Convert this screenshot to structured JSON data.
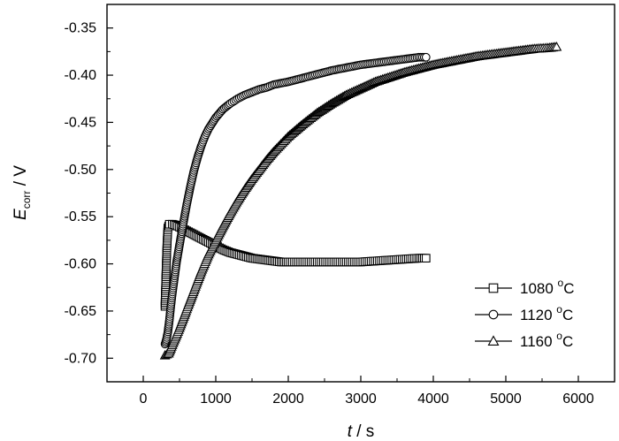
{
  "chart_data": {
    "type": "scatter",
    "xlabel": "t / s",
    "xlabel_italic": "t",
    "xlabel_unit": " / s",
    "ylabel_symbol": "E",
    "ylabel_subscript": "corr",
    "ylabel_unit": " / V",
    "xlim": [
      -500,
      6500
    ],
    "ylim": [
      -0.725,
      -0.325
    ],
    "x_ticks": [
      0,
      1000,
      2000,
      3000,
      4000,
      5000,
      6000
    ],
    "x_tick_labels": [
      "0",
      "1000",
      "2000",
      "3000",
      "4000",
      "5000",
      "6000"
    ],
    "y_ticks": [
      -0.35,
      -0.4,
      -0.45,
      -0.5,
      -0.55,
      -0.6,
      -0.65,
      -0.7
    ],
    "y_tick_labels": [
      "-0.35",
      "-0.40",
      "-0.45",
      "-0.50",
      "-0.55",
      "-0.60",
      "-0.65",
      "-0.70"
    ],
    "grid": false,
    "legend_position": "bottom-right",
    "series": [
      {
        "name": "1080 °C",
        "label_main": "1080 ",
        "label_sup": "o",
        "label_tail": "C",
        "marker": "square",
        "points": [
          [
            300,
            -0.645
          ],
          [
            310,
            -0.62
          ],
          [
            320,
            -0.595
          ],
          [
            330,
            -0.575
          ],
          [
            340,
            -0.562
          ],
          [
            360,
            -0.558
          ],
          [
            400,
            -0.558
          ],
          [
            450,
            -0.559
          ],
          [
            500,
            -0.561
          ],
          [
            600,
            -0.565
          ],
          [
            700,
            -0.569
          ],
          [
            800,
            -0.573
          ],
          [
            900,
            -0.577
          ],
          [
            1000,
            -0.581
          ],
          [
            1100,
            -0.585
          ],
          [
            1200,
            -0.588
          ],
          [
            1300,
            -0.59
          ],
          [
            1400,
            -0.592
          ],
          [
            1500,
            -0.594
          ],
          [
            1600,
            -0.595
          ],
          [
            1700,
            -0.596
          ],
          [
            1800,
            -0.597
          ],
          [
            1900,
            -0.598
          ],
          [
            2000,
            -0.598
          ],
          [
            2200,
            -0.598
          ],
          [
            2400,
            -0.598
          ],
          [
            2600,
            -0.598
          ],
          [
            2800,
            -0.598
          ],
          [
            3000,
            -0.598
          ],
          [
            3200,
            -0.597
          ],
          [
            3400,
            -0.596
          ],
          [
            3600,
            -0.595
          ],
          [
            3800,
            -0.594
          ],
          [
            3900,
            -0.594
          ]
        ]
      },
      {
        "name": "1120 °C",
        "label_main": "1120 ",
        "label_sup": "o",
        "label_tail": "C",
        "marker": "circle",
        "points": [
          [
            300,
            -0.685
          ],
          [
            320,
            -0.68
          ],
          [
            340,
            -0.672
          ],
          [
            360,
            -0.66
          ],
          [
            380,
            -0.645
          ],
          [
            400,
            -0.632
          ],
          [
            430,
            -0.615
          ],
          [
            460,
            -0.598
          ],
          [
            500,
            -0.58
          ],
          [
            550,
            -0.558
          ],
          [
            600,
            -0.537
          ],
          [
            650,
            -0.518
          ],
          [
            700,
            -0.501
          ],
          [
            750,
            -0.487
          ],
          [
            800,
            -0.475
          ],
          [
            850,
            -0.465
          ],
          [
            900,
            -0.457
          ],
          [
            1000,
            -0.445
          ],
          [
            1100,
            -0.436
          ],
          [
            1200,
            -0.43
          ],
          [
            1300,
            -0.425
          ],
          [
            1400,
            -0.421
          ],
          [
            1500,
            -0.418
          ],
          [
            1600,
            -0.415
          ],
          [
            1700,
            -0.413
          ],
          [
            1800,
            -0.41
          ],
          [
            2000,
            -0.407
          ],
          [
            2200,
            -0.403
          ],
          [
            2400,
            -0.399
          ],
          [
            2600,
            -0.395
          ],
          [
            2800,
            -0.392
          ],
          [
            3000,
            -0.389
          ],
          [
            3200,
            -0.387
          ],
          [
            3400,
            -0.385
          ],
          [
            3600,
            -0.383
          ],
          [
            3800,
            -0.381
          ],
          [
            3900,
            -0.381
          ]
        ]
      },
      {
        "name": "1160 °C",
        "label_main": "1160 ",
        "label_sup": "o",
        "label_tail": "C",
        "marker": "triangle",
        "points": [
          [
            300,
            -0.697
          ],
          [
            350,
            -0.695
          ],
          [
            400,
            -0.686
          ],
          [
            500,
            -0.668
          ],
          [
            600,
            -0.648
          ],
          [
            700,
            -0.628
          ],
          [
            800,
            -0.608
          ],
          [
            900,
            -0.59
          ],
          [
            1000,
            -0.575
          ],
          [
            1100,
            -0.56
          ],
          [
            1200,
            -0.546
          ],
          [
            1300,
            -0.533
          ],
          [
            1400,
            -0.521
          ],
          [
            1500,
            -0.51
          ],
          [
            1600,
            -0.5
          ],
          [
            1700,
            -0.49
          ],
          [
            1800,
            -0.481
          ],
          [
            1900,
            -0.473
          ],
          [
            2000,
            -0.465
          ],
          [
            2200,
            -0.452
          ],
          [
            2400,
            -0.44
          ],
          [
            2600,
            -0.43
          ],
          [
            2800,
            -0.421
          ],
          [
            3000,
            -0.414
          ],
          [
            3200,
            -0.407
          ],
          [
            3400,
            -0.402
          ],
          [
            3600,
            -0.397
          ],
          [
            3800,
            -0.393
          ],
          [
            4000,
            -0.389
          ],
          [
            4200,
            -0.386
          ],
          [
            4400,
            -0.383
          ],
          [
            4600,
            -0.38
          ],
          [
            4800,
            -0.378
          ],
          [
            5000,
            -0.376
          ],
          [
            5200,
            -0.374
          ],
          [
            5400,
            -0.372
          ],
          [
            5600,
            -0.371
          ],
          [
            5700,
            -0.37
          ]
        ]
      }
    ]
  }
}
